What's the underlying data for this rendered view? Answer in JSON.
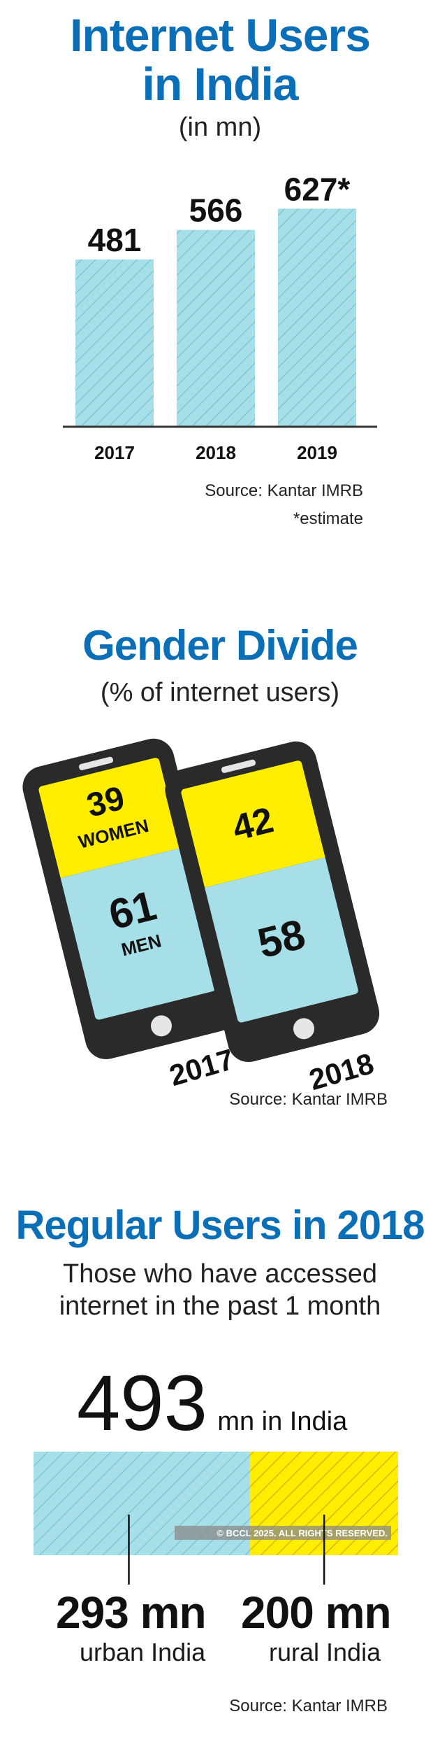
{
  "colors": {
    "title_blue": "#0a6fb7",
    "bar_cyan": "#a7dfe8",
    "hatch_cyan": "#7cc9d6",
    "women_yellow": "#ffee00",
    "rural_hatch": "#e0b400",
    "phone_dark": "#2a2a2a"
  },
  "section1": {
    "title_line1": "Internet Users",
    "title_line2": "in India",
    "subtitle": "(in mn)",
    "source": "Source: Kantar IMRB",
    "footnote": "*estimate"
  },
  "chart_data": [
    {
      "type": "bar",
      "title": "Internet Users in India",
      "subtitle": "(in mn)",
      "categories": [
        "2017",
        "2018",
        "2019"
      ],
      "values": [
        481,
        566,
        627
      ],
      "value_labels": [
        "481",
        "566",
        "627*"
      ],
      "ylim": [
        0,
        700
      ]
    },
    {
      "type": "bar",
      "title": "Gender Divide",
      "subtitle": "(% of internet users)",
      "categories": [
        "2017",
        "2018"
      ],
      "series": [
        {
          "name": "WOMEN",
          "values": [
            39,
            42
          ]
        },
        {
          "name": "MEN",
          "values": [
            61,
            58
          ]
        }
      ],
      "stacked": true,
      "ylim": [
        0,
        100
      ]
    },
    {
      "type": "bar",
      "title": "Regular Users in 2018",
      "total": 493,
      "categories": [
        "urban India",
        "rural India"
      ],
      "values": [
        293,
        200
      ],
      "stacked": true
    }
  ],
  "section2": {
    "title": "Gender Divide",
    "subtitle": "(% of internet users)",
    "phones": [
      {
        "year": "2017",
        "top_value": "39",
        "top_label": "WOMEN",
        "bottom_value": "61",
        "bottom_label": "MEN"
      },
      {
        "year": "2018",
        "top_value": "42",
        "bottom_value": "58"
      }
    ],
    "source": "Source: Kantar IMRB"
  },
  "section3": {
    "title": "Regular Users in 2018",
    "subtitle_line1": "Those who have accessed",
    "subtitle_line2": "internet in the past 1 month",
    "total_number": "493",
    "total_suffix": "mn in India",
    "urban_value": "293 mn",
    "urban_label": "urban India",
    "rural_value": "200 mn",
    "rural_label": "rural India",
    "watermark": "© BCCL 2025. ALL RIGHTS RESERVED.",
    "source": "Source: Kantar IMRB"
  }
}
